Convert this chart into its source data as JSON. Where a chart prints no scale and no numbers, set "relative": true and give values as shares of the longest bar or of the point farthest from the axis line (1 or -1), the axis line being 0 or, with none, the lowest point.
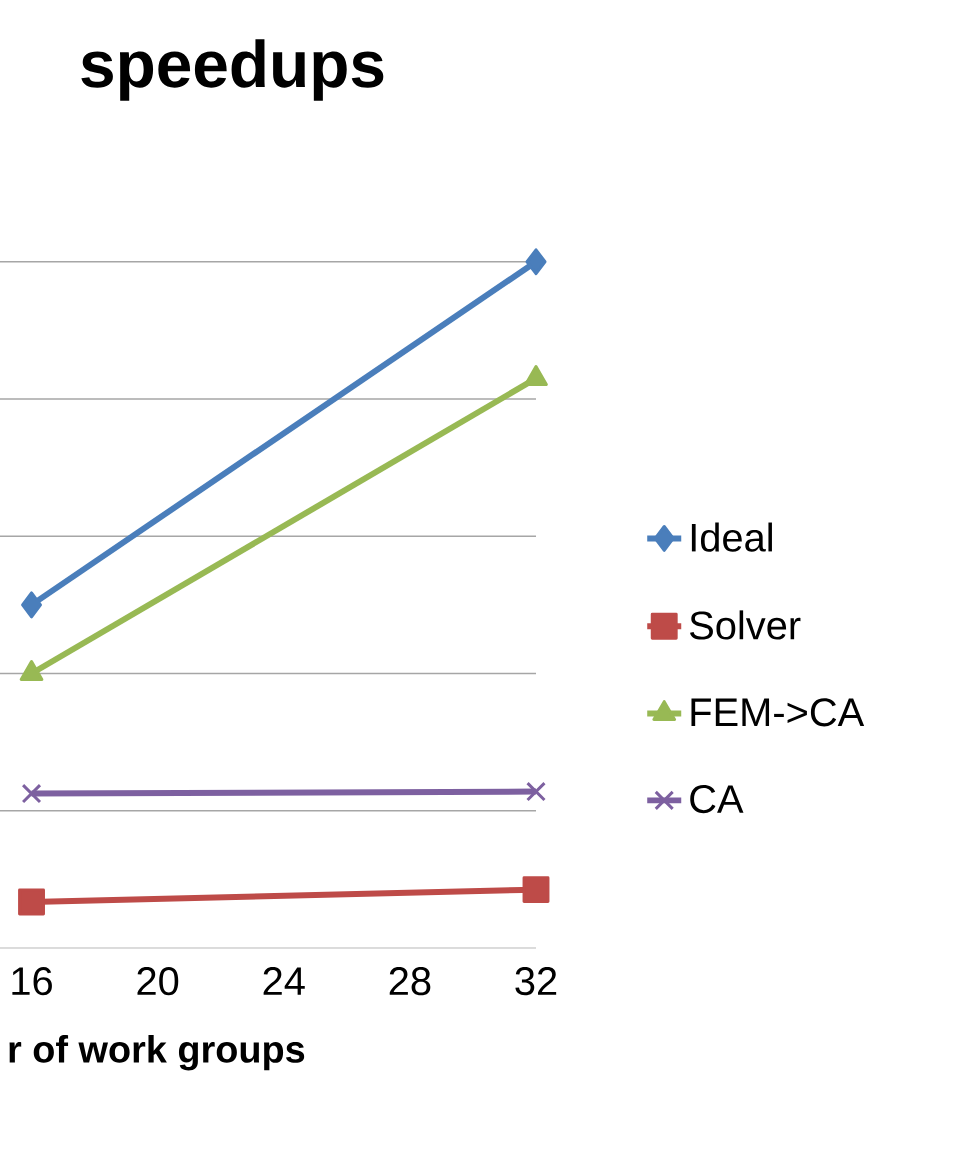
{
  "chart_data": {
    "type": "line",
    "title": "speedups",
    "xlabel": "r of work groups",
    "relative": true,
    "x": [
      16,
      32
    ],
    "xlim": [
      15,
      32
    ],
    "xticks": [
      16,
      20,
      24,
      28,
      32
    ],
    "grid": "y",
    "legend": "right",
    "line_style": "solid",
    "series": [
      {
        "name": "Ideal",
        "color": "#4a7ebb",
        "marker": "diamond",
        "values": [
          0.5,
          1
        ]
      },
      {
        "name": "Solver",
        "color": "#be4b48",
        "marker": "square",
        "values": [
          0.067,
          0.085
        ]
      },
      {
        "name": "FEM->CA",
        "color": "#98b954",
        "marker": "triangle",
        "values": [
          0.4,
          0.83
        ]
      },
      {
        "name": "CA",
        "color": "#7d60a0",
        "marker": "cross",
        "values": [
          0.225,
          0.228
        ]
      }
    ]
  }
}
